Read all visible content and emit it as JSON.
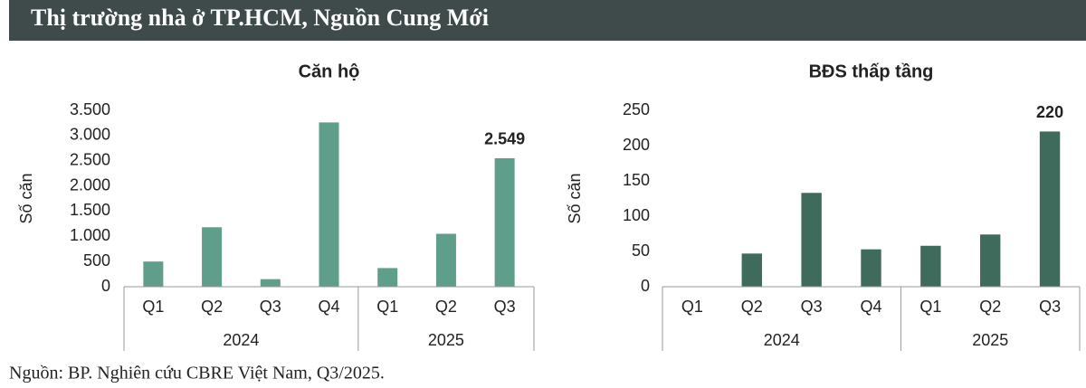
{
  "title": "Thị trường nhà ở TP.HCM, Nguồn Cung Mới",
  "source": "Nguồn: BP. Nghiên cứu CBRE Việt Nam, Q3/2025.",
  "chart_data": [
    {
      "type": "bar",
      "title": "Căn hộ",
      "y_label": "Số căn",
      "color": "#5f9e8a",
      "groups": [
        {
          "label": "2024",
          "categories": [
            "Q1",
            "Q2",
            "Q3",
            "Q4"
          ]
        },
        {
          "label": "2025",
          "categories": [
            "Q1",
            "Q2",
            "Q3"
          ]
        }
      ],
      "values": [
        500,
        1180,
        150,
        3260,
        370,
        1050,
        2549
      ],
      "value_labels": [
        null,
        null,
        null,
        null,
        null,
        null,
        "2.549"
      ],
      "ylim": [
        0,
        3500
      ],
      "yticks": [
        0,
        500,
        {
          "value": 1000,
          "label": "1.000"
        },
        {
          "value": 1500,
          "label": "1.500"
        },
        {
          "value": 2000,
          "label": "2.000"
        },
        {
          "value": 2500,
          "label": "2.500"
        },
        {
          "value": 3000,
          "label": "3.000"
        },
        {
          "value": 3500,
          "label": "3.500"
        }
      ],
      "grid": false
    },
    {
      "type": "bar",
      "title": "BĐS thấp tầng",
      "y_label": "Số căn",
      "color": "#3e6b5b",
      "groups": [
        {
          "label": "2024",
          "categories": [
            "Q1",
            "Q2",
            "Q3",
            "Q4"
          ]
        },
        {
          "label": "2025",
          "categories": [
            "Q1",
            "Q2",
            "Q3"
          ]
        }
      ],
      "values": [
        0,
        47,
        133,
        53,
        58,
        74,
        220
      ],
      "value_labels": [
        null,
        null,
        null,
        null,
        null,
        null,
        "220"
      ],
      "ylim": [
        0,
        250
      ],
      "yticks": [
        0,
        50,
        100,
        150,
        200,
        250
      ],
      "grid": false
    }
  ]
}
